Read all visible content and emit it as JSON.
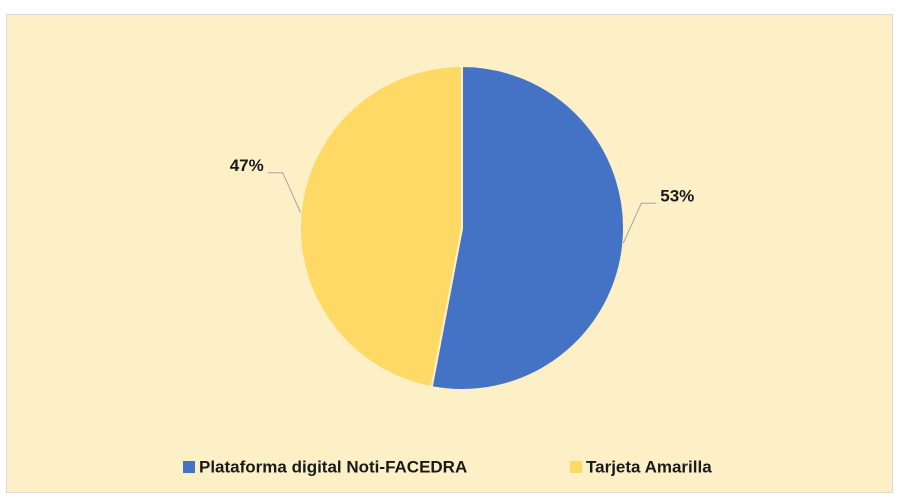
{
  "chart_data": {
    "type": "pie",
    "categories": [
      "Plataforma digital Noti-FACEDRA",
      "Tarjeta Amarilla"
    ],
    "values": [
      53,
      47
    ],
    "value_labels": [
      "53%",
      "47%"
    ],
    "colors": [
      "#4472c4",
      "#ffd966"
    ],
    "legend": "bottom"
  }
}
